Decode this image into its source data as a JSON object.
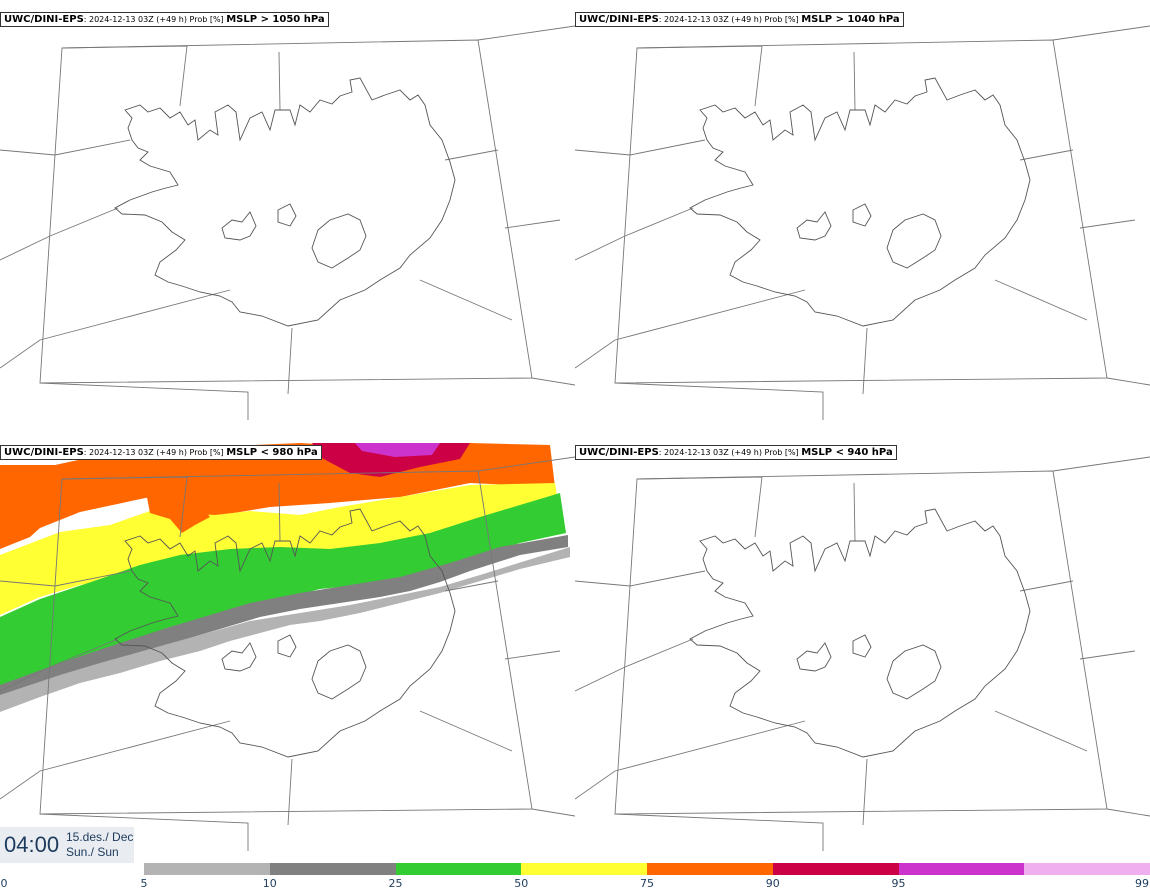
{
  "panels": [
    {
      "model": "UWC/DINI-EPS",
      "meta": ": 2024-12-13 03Z (+49 h) Prob [%] ",
      "field": "MSLP > 1050 hPa"
    },
    {
      "model": "UWC/DINI-EPS",
      "meta": ": 2024-12-13 03Z (+49 h) Prob [%] ",
      "field": "MSLP > 1040 hPa"
    },
    {
      "model": "UWC/DINI-EPS",
      "meta": ": 2024-12-13 03Z (+49 h) Prob [%] ",
      "field": "MSLP < 980 hPa"
    },
    {
      "model": "UWC/DINI-EPS",
      "meta": ": 2024-12-13 03Z (+49 h) Prob [%] ",
      "field": "MSLP < 940 hPa"
    }
  ],
  "timestamp": {
    "time": "04:00",
    "date_line1": "15.des./ Dec",
    "date_line2": "Sun./ Sun"
  },
  "legend": {
    "colors": [
      "#b3b3b3",
      "#808080",
      "#33cc33",
      "#ffff33",
      "#ff6600",
      "#cc0044",
      "#cc33cc",
      "#f0b0f0"
    ],
    "ticks": [
      "0",
      "5",
      "10",
      "25",
      "50",
      "75",
      "90",
      "95",
      "99"
    ]
  },
  "probability_bands": {
    "panel": "MSLP < 980 hPa",
    "colors": {
      "5-10": "#b3b3b3",
      "10-25": "#808080",
      "25-50": "#33cc33",
      "50-75": "#ffff33",
      "75-90": "#ff6600",
      "90-95": "#cc0044",
      "95-99": "#cc33cc"
    }
  }
}
